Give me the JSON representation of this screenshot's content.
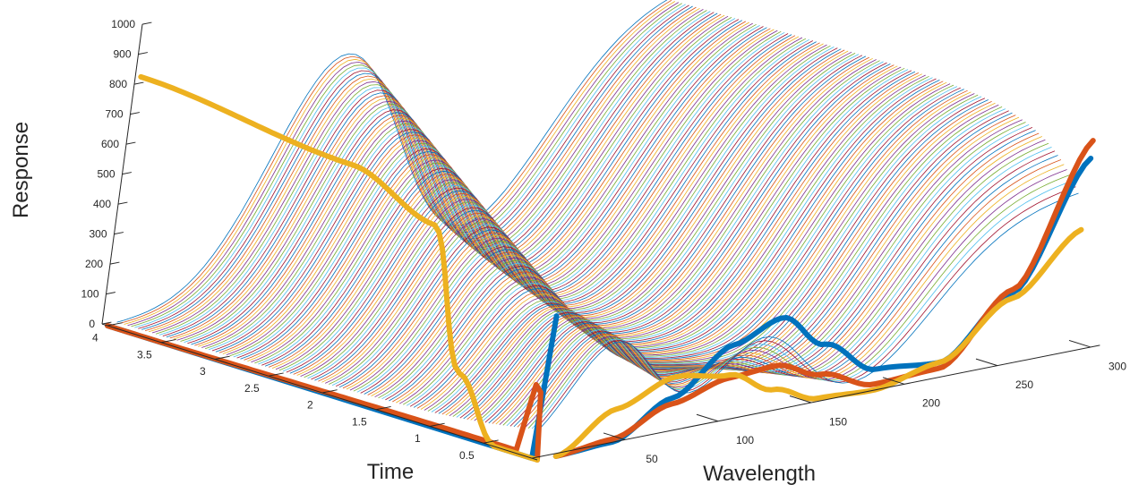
{
  "chart_data": {
    "type": "line",
    "title": "",
    "xlabel": "Wavelength",
    "ylabel": "Time",
    "zlabel": "Response",
    "xlim": [
      0,
      300
    ],
    "ylim": [
      0,
      4
    ],
    "zlim": [
      0,
      1000
    ],
    "grid": false,
    "x_ticks": [
      50,
      100,
      150,
      200,
      250,
      300
    ],
    "y_ticks": [
      0.5,
      1,
      1.5,
      2,
      2.5,
      3,
      3.5,
      4
    ],
    "z_ticks": [
      0,
      100,
      200,
      300,
      400,
      500,
      600,
      700,
      800,
      900,
      1000
    ],
    "surface_lines": {
      "description_count": 120,
      "wavelength_range": [
        5,
        285
      ],
      "time_range": [
        0.1,
        4.0
      ],
      "colors": [
        "#0072BD",
        "#D95319",
        "#EDB120",
        "#7E2F8E",
        "#77AC30",
        "#4DBEEE",
        "#A2142F"
      ]
    },
    "highlighted_series": [
      {
        "color": "#0072BD",
        "time_profile": [
          [
            0,
            480
          ],
          [
            0.05,
            0
          ],
          [
            0.1,
            0
          ],
          [
            4.0,
            0
          ]
        ],
        "wavelength_profile": [
          [
            10,
            0
          ],
          [
            40,
            10
          ],
          [
            70,
            120
          ],
          [
            100,
            260
          ],
          [
            125,
            320
          ],
          [
            150,
            200
          ],
          [
            180,
            80
          ],
          [
            215,
            60
          ],
          [
            250,
            250
          ],
          [
            285,
            660
          ]
        ]
      },
      {
        "color": "#D95319",
        "time_profile": [
          [
            0,
            0
          ],
          [
            0.05,
            220
          ],
          [
            0.1,
            240
          ],
          [
            0.2,
            10
          ],
          [
            4.0,
            0
          ]
        ],
        "wavelength_profile": [
          [
            10,
            0
          ],
          [
            40,
            20
          ],
          [
            70,
            100
          ],
          [
            100,
            150
          ],
          [
            125,
            160
          ],
          [
            150,
            100
          ],
          [
            180,
            30
          ],
          [
            215,
            40
          ],
          [
            250,
            260
          ],
          [
            285,
            720
          ]
        ]
      },
      {
        "color": "#EDB120",
        "time_profile": [
          [
            0,
            0
          ],
          [
            0.4,
            0
          ],
          [
            0.8,
            200
          ],
          [
            1.2,
            650
          ],
          [
            2.0,
            760
          ],
          [
            4.0,
            830
          ]
        ],
        "wavelength_profile": [
          [
            10,
            0
          ],
          [
            40,
            120
          ],
          [
            70,
            190
          ],
          [
            100,
            160
          ],
          [
            125,
            80
          ],
          [
            150,
            20
          ],
          [
            180,
            10
          ],
          [
            215,
            60
          ],
          [
            250,
            230
          ],
          [
            285,
            420
          ]
        ]
      }
    ]
  }
}
